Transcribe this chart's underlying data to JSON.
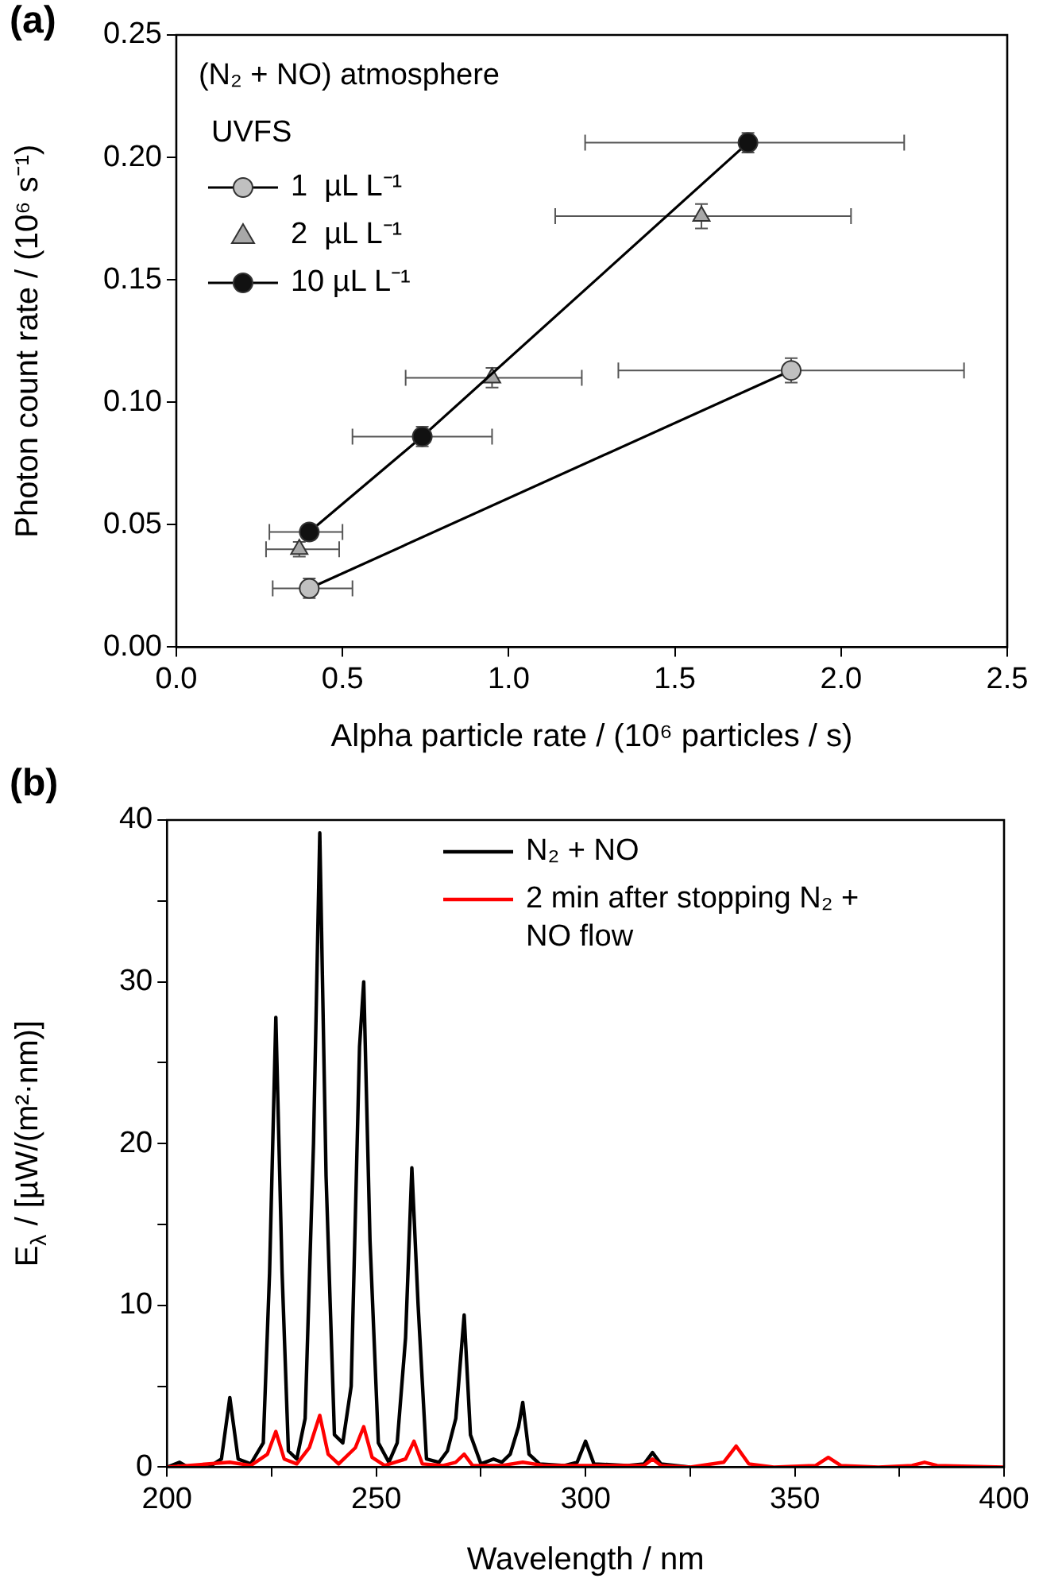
{
  "chart_data": [
    {
      "type": "line",
      "ylabel": "Photon count rate / (10⁶ s⁻¹)",
      "xlabel": "Alpha particle rate / (10⁶ particles / s)",
      "legend_title": "UVFS",
      "legend": "top left",
      "grid": false,
      "annotations": [
        "(a)",
        "(N₂ + NO) atmosphere"
      ],
      "xlim": [
        0,
        2.5
      ],
      "xticks": [
        {
          "value": 0,
          "label": "0.0"
        },
        0.5,
        {
          "value": 1,
          "label": "1.0"
        },
        1.5,
        {
          "value": 2,
          "label": "2.0"
        },
        2.5
      ],
      "ylim": [
        0,
        0.25
      ],
      "yticks": [
        {
          "value": 0,
          "label": "0.00"
        },
        0.05,
        {
          "value": 0.1,
          "label": "0.10"
        },
        0.15,
        {
          "value": 0.2,
          "label": "0.20"
        },
        0.25
      ],
      "series": [
        {
          "name": "1  µL L⁻¹",
          "type": "line",
          "marker": "circle",
          "color": "#c0c0c0",
          "x": [
            0.4,
            1.85
          ],
          "values": [
            0.024,
            0.113
          ],
          "errors": [
            0.004,
            0.005
          ],
          "xerrors": [
            [
              0.29,
              0.53
            ],
            [
              1.33,
              2.37
            ]
          ]
        },
        {
          "name": "2  µL L⁻¹",
          "type": "scatter",
          "marker": "triangle",
          "color": "#a8a8a8",
          "x": [
            0.37,
            0.95,
            1.58
          ],
          "values": [
            0.04,
            0.11,
            0.176
          ],
          "errors": [
            0.003,
            0.004,
            0.005
          ],
          "xerrors": [
            [
              0.27,
              0.49
            ],
            [
              0.69,
              1.22
            ],
            [
              1.14,
              2.03
            ]
          ]
        },
        {
          "name": "10 µL L⁻¹",
          "type": "line",
          "marker": "circle",
          "color": "#111111",
          "x": [
            0.4,
            0.74,
            1.72
          ],
          "values": [
            0.047,
            0.086,
            0.206
          ],
          "errors": [
            0.003,
            0.004,
            0.004
          ],
          "xerrors": [
            [
              0.28,
              0.5
            ],
            [
              0.53,
              0.95
            ],
            [
              1.23,
              2.19
            ]
          ]
        }
      ]
    },
    {
      "type": "line",
      "ylabel": "E$_{λ}$ / [µW/(m²·nm)]",
      "xlabel": "Wavelength / nm",
      "legend": "top right",
      "grid": false,
      "marker": "none",
      "annotations": [
        "(b)"
      ],
      "xlim": [
        200,
        400
      ],
      "xticks": [
        200,
        {
          "value": 225,
          "label": null
        },
        250,
        {
          "value": 275,
          "label": null
        },
        300,
        {
          "value": 325,
          "label": null
        },
        350,
        {
          "value": 375,
          "label": null
        },
        400
      ],
      "ylim": [
        0,
        40
      ],
      "yticks": [
        0,
        {
          "value": 5,
          "label": null
        },
        10,
        {
          "value": 15,
          "label": null
        },
        20,
        {
          "value": 25,
          "label": null
        },
        30,
        {
          "value": 35,
          "label": null
        },
        40
      ],
      "series": [
        {
          "name": "N₂ + NO",
          "color": "#000000",
          "x": [
            200,
            203,
            205,
            210,
            213,
            215,
            217,
            220,
            223,
            224.5,
            226,
            227.5,
            229,
            231,
            233,
            235,
            236.5,
            238,
            240,
            242,
            244,
            246,
            247,
            248.5,
            250.5,
            253,
            255,
            257,
            258.5,
            260,
            262,
            265,
            267,
            269,
            271,
            272.5,
            275,
            278,
            280,
            282,
            284,
            285,
            286.5,
            289,
            295,
            298,
            300,
            302,
            310,
            314,
            316,
            318,
            325
          ],
          "values": [
            0,
            0.3,
            0,
            0,
            0.5,
            4.3,
            0.5,
            0.2,
            1.5,
            12,
            27.8,
            12,
            1.0,
            0.5,
            3,
            20,
            39.2,
            18,
            2,
            1.5,
            5,
            26,
            30,
            14,
            1.5,
            0.3,
            1.5,
            8,
            18.5,
            10,
            0.5,
            0.3,
            1,
            3,
            9.4,
            2,
            0.2,
            0.5,
            0.3,
            0.8,
            2.5,
            4.0,
            0.8,
            0.2,
            0.1,
            0.3,
            1.6,
            0.2,
            0.1,
            0.2,
            0.9,
            0.2,
            0
          ]
        },
        {
          "name": "2 min after stopping N₂ + NO flow",
          "color": "#ff0000",
          "x": [
            200,
            215,
            220,
            224,
            226,
            228,
            231,
            234,
            236.5,
            238.5,
            241,
            245,
            247,
            249,
            252,
            257,
            259,
            261,
            266,
            269,
            271,
            273,
            280,
            285,
            290,
            300,
            314,
            316,
            318,
            325,
            333,
            336,
            339,
            345,
            355,
            358,
            361,
            370,
            378,
            381,
            384,
            400
          ],
          "values": [
            0,
            0.3,
            0.1,
            0.8,
            2.2,
            0.5,
            0.2,
            1.2,
            3.2,
            0.8,
            0.2,
            1.2,
            2.5,
            0.6,
            0.1,
            0.5,
            1.6,
            0.2,
            0.1,
            0.3,
            0.8,
            0.1,
            0.1,
            0.3,
            0.1,
            0.1,
            0.1,
            0.5,
            0.1,
            0,
            0.3,
            1.3,
            0.2,
            0,
            0.1,
            0.6,
            0.1,
            0,
            0.1,
            0.3,
            0.1,
            0
          ]
        }
      ]
    }
  ]
}
